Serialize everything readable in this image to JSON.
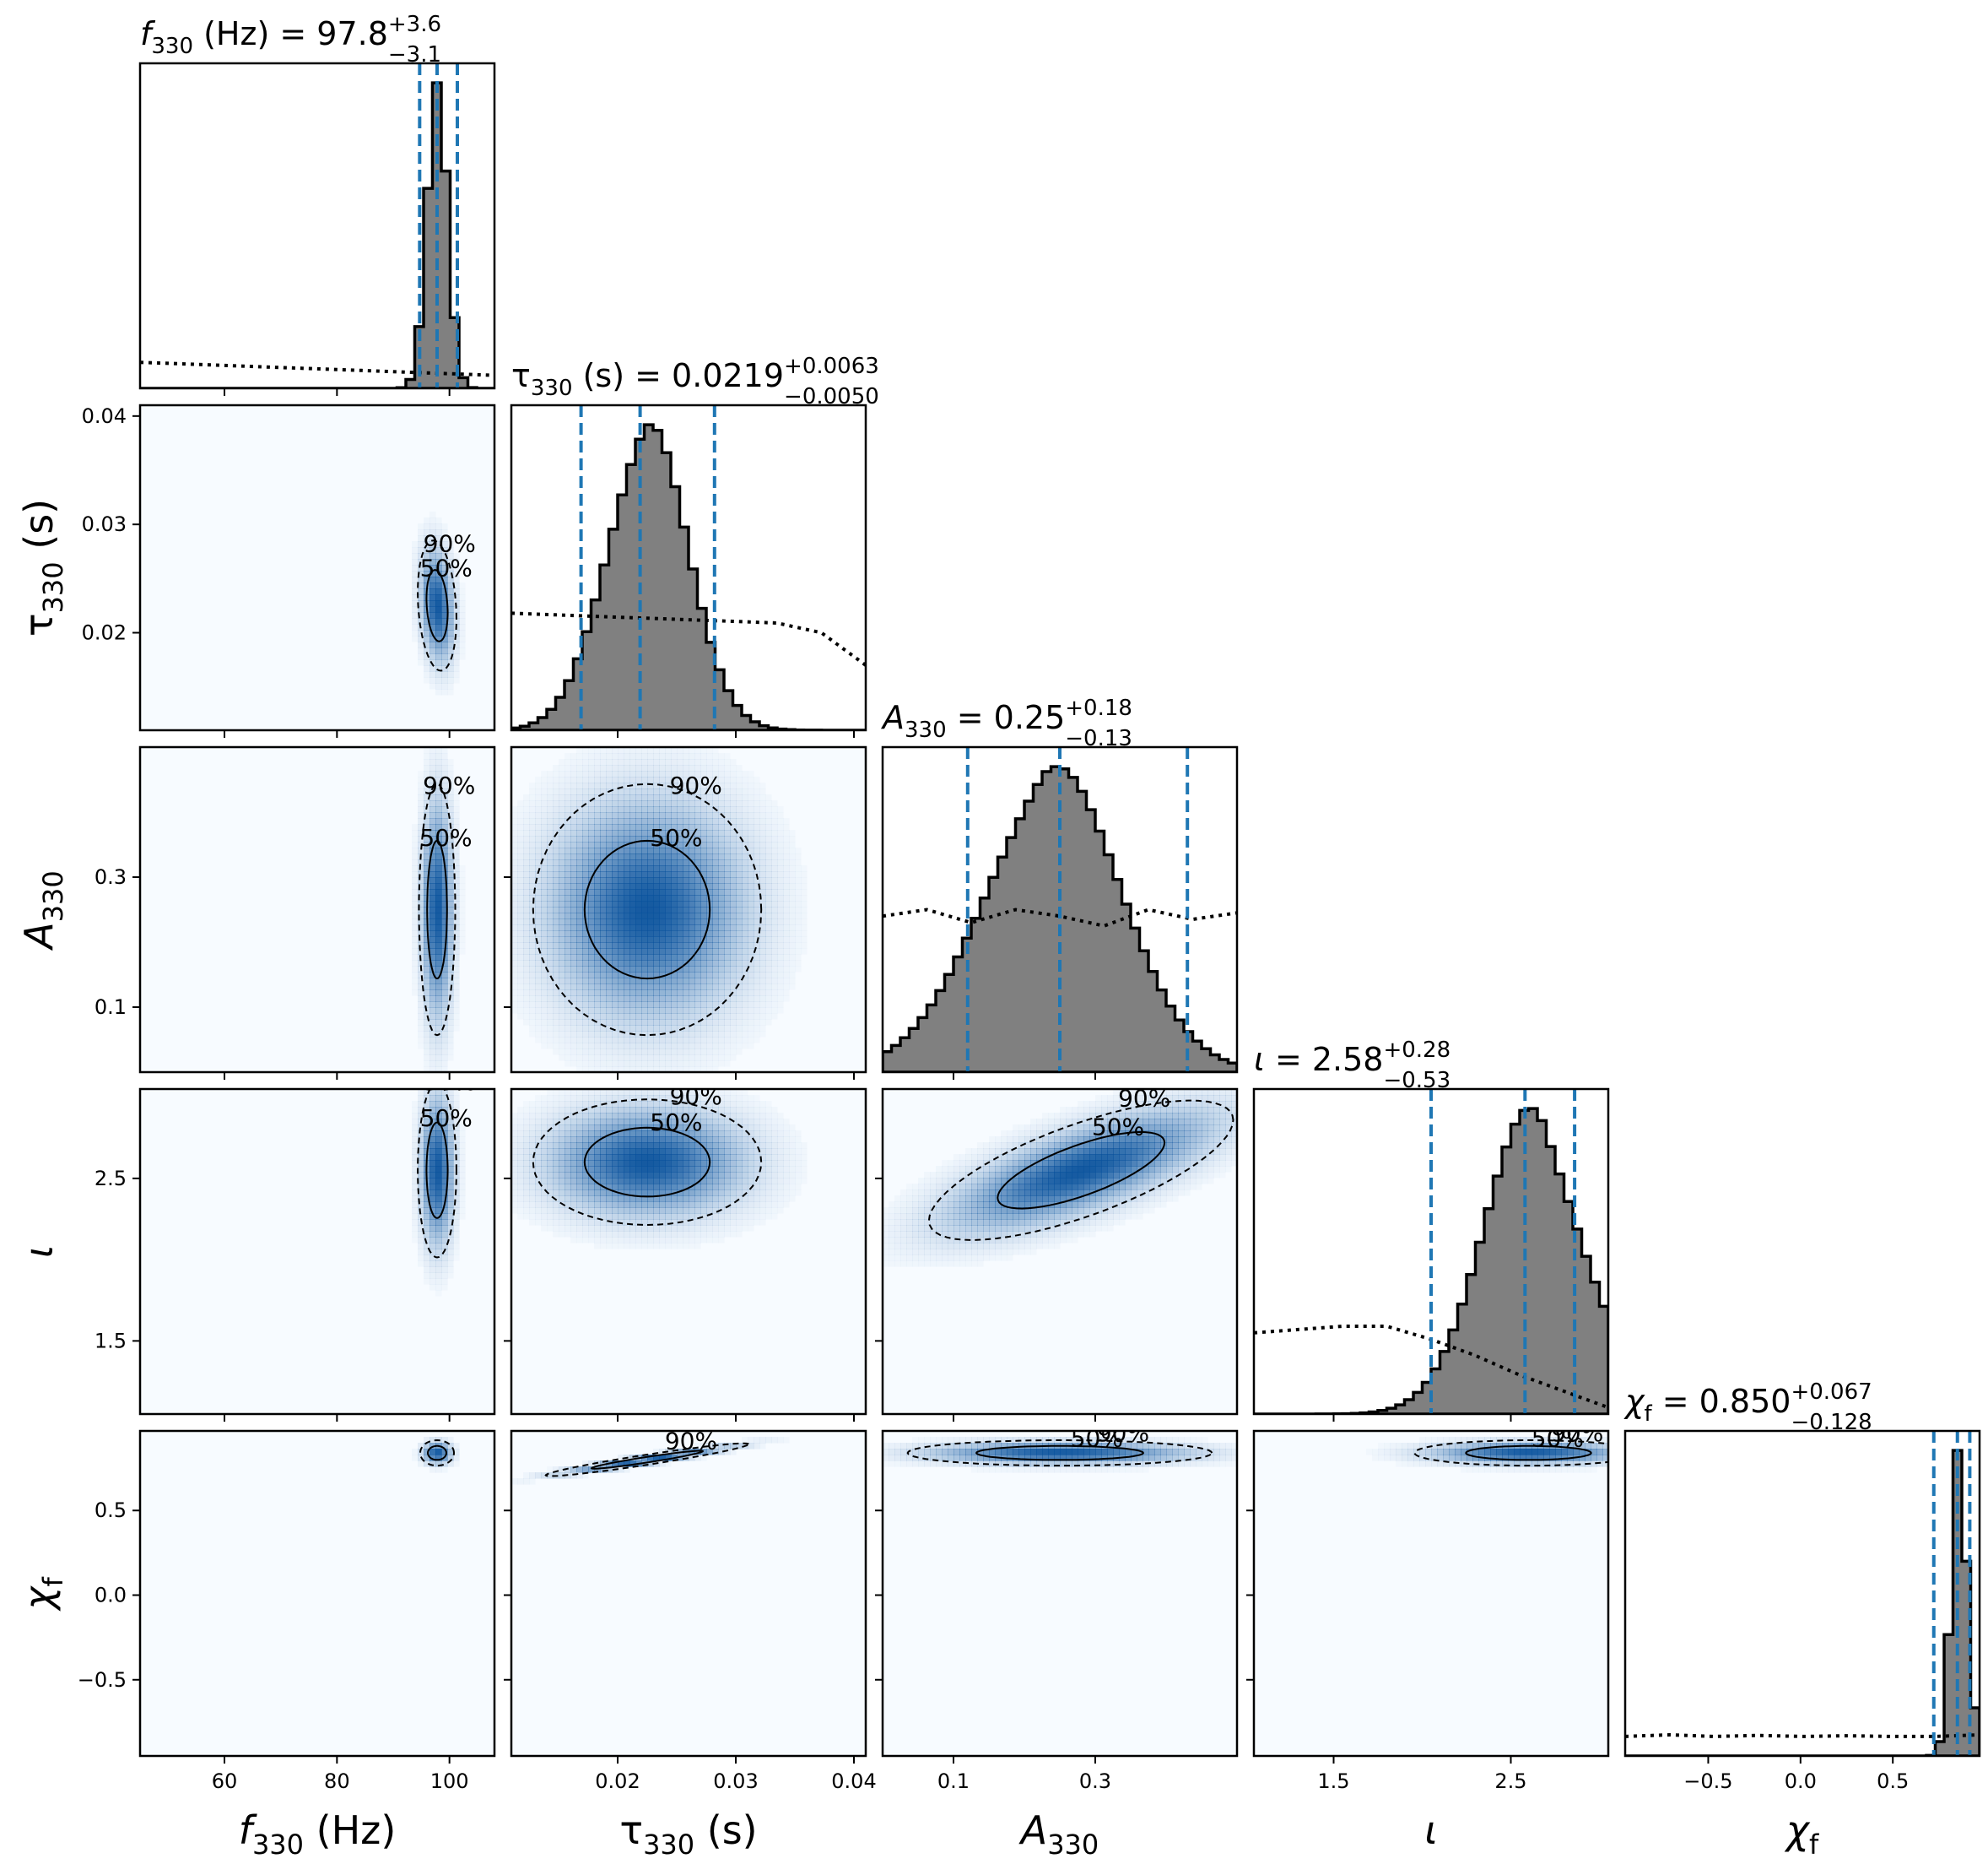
{
  "chart_data": {
    "type": "corner",
    "colors": {
      "hist_fill": "#808080",
      "hist_edge": "#000000",
      "quantile_line": "#1f77b4",
      "density": "#08519c",
      "density_bg": "#f7fbff"
    },
    "parameters": [
      {
        "id": "f330",
        "axis_label": "f330 (Hz)",
        "label_main": "f",
        "label_sub": "330",
        "label_suffix": " (Hz)",
        "italic": true,
        "range": [
          45,
          108
        ],
        "ticks": [
          60,
          80,
          100
        ],
        "tick_labels": [
          "60",
          "80",
          "100"
        ],
        "y_tick_labels": [],
        "title_value": "97.8",
        "title_plus": "+3.6",
        "title_minus": "−3.1",
        "quantiles": [
          94.7,
          97.8,
          101.4
        ],
        "hist": {
          "center": 97.8,
          "sigma": 1.8,
          "skew": 0.05
        },
        "prior": {
          "shape": "decreasing",
          "values": [
            0.08,
            0.075,
            0.07,
            0.065,
            0.06,
            0.055,
            0.05,
            0.045,
            0.04
          ]
        }
      },
      {
        "id": "tau330",
        "axis_label": "τ330 (s)",
        "label_main": "τ",
        "label_sub": "330",
        "label_suffix": " (s)",
        "italic": false,
        "range": [
          0.011,
          0.041
        ],
        "ticks": [
          0.02,
          0.03,
          0.04
        ],
        "tick_labels": [
          "0.02",
          "0.03",
          "0.04"
        ],
        "y_tick_labels": [
          "0.02",
          "0.03",
          "0.04"
        ],
        "title_value": "0.0219",
        "title_plus": "+0.0063",
        "title_minus": "−0.0050",
        "quantiles": [
          0.0169,
          0.0219,
          0.0282
        ],
        "hist": {
          "center": 0.022,
          "sigma": 0.0035,
          "skew": 0.35
        },
        "prior": {
          "shape": "decreasing",
          "values": [
            0.36,
            0.355,
            0.35,
            0.345,
            0.34,
            0.335,
            0.33,
            0.3,
            0.2
          ]
        }
      },
      {
        "id": "A330",
        "axis_label": "A330",
        "label_main": "A",
        "label_sub": "330",
        "label_suffix": "",
        "italic": true,
        "range": [
          0.0,
          0.5
        ],
        "ticks": [
          0.1,
          0.3
        ],
        "tick_labels": [
          "0.1",
          "0.3"
        ],
        "y_tick_labels": [
          "0.1",
          "0.3"
        ],
        "title_value": "0.25",
        "title_plus": "+0.18",
        "title_minus": "−0.13",
        "quantiles": [
          0.12,
          0.25,
          0.43
        ],
        "hist": {
          "center": 0.22,
          "sigma": 0.1,
          "skew": 0.45
        },
        "prior": {
          "shape": "flat",
          "values": [
            0.48,
            0.5,
            0.46,
            0.5,
            0.48,
            0.45,
            0.5,
            0.47,
            0.49
          ]
        }
      },
      {
        "id": "iota",
        "axis_label": "ι",
        "label_main": "ι",
        "label_sub": "",
        "label_suffix": "",
        "italic": true,
        "range": [
          1.05,
          3.05
        ],
        "ticks": [
          1.5,
          2.5
        ],
        "tick_labels": [
          "1.5",
          "2.5"
        ],
        "y_tick_labels": [
          "1.5",
          "2.5"
        ],
        "title_value": "2.58",
        "title_plus": "+0.28",
        "title_minus": "−0.53",
        "quantiles": [
          2.05,
          2.58,
          2.86
        ],
        "hist": {
          "center": 2.7,
          "sigma": 0.3,
          "skew": -0.6
        },
        "prior": {
          "shape": "decreasing",
          "values": [
            0.25,
            0.26,
            0.27,
            0.27,
            0.23,
            0.18,
            0.12,
            0.07,
            0.02
          ]
        }
      },
      {
        "id": "chif",
        "axis_label": "χf",
        "label_main": "χ",
        "label_sub": "f",
        "label_suffix": "",
        "italic": true,
        "range": [
          -0.95,
          0.97
        ],
        "ticks": [
          -0.5,
          0.0,
          0.5
        ],
        "tick_labels": [
          "−0.5",
          "0.0",
          "0.5"
        ],
        "y_tick_labels": [
          "−0.5",
          "0.0",
          "0.5"
        ],
        "title_value": "0.850",
        "title_plus": "+0.067",
        "title_minus": "−0.128",
        "quantiles": [
          0.722,
          0.85,
          0.917
        ],
        "hist": {
          "center": 0.87,
          "sigma": 0.045,
          "skew": -0.5
        },
        "prior": {
          "shape": "flat",
          "values": [
            0.06,
            0.065,
            0.06,
            0.063,
            0.06,
            0.062,
            0.06,
            0.06,
            0.065
          ]
        }
      }
    ],
    "pairs": [
      {
        "x": "f330",
        "y": "tau330",
        "mean": [
          97.8,
          0.0225
        ],
        "sd": [
          1.6,
          0.0028
        ],
        "rho": -0.2,
        "labels": [
          "50%",
          "90%"
        ]
      },
      {
        "x": "f330",
        "y": "A330",
        "mean": [
          97.8,
          0.25
        ],
        "sd": [
          1.5,
          0.09
        ],
        "rho": 0.0,
        "labels": [
          "50%",
          "90%"
        ]
      },
      {
        "x": "tau330",
        "y": "A330",
        "mean": [
          0.0225,
          0.25
        ],
        "sd": [
          0.0045,
          0.09
        ],
        "rho": 0.0,
        "labels": [
          "50%",
          "90%"
        ]
      },
      {
        "x": "f330",
        "y": "iota",
        "mean": [
          97.8,
          2.55
        ],
        "sd": [
          1.6,
          0.25
        ],
        "rho": 0.0,
        "labels": [
          "50%",
          "90%"
        ]
      },
      {
        "x": "tau330",
        "y": "iota",
        "mean": [
          0.0225,
          2.6
        ],
        "sd": [
          0.0045,
          0.18
        ],
        "rho": 0.0,
        "labels": [
          "50%",
          "90%"
        ]
      },
      {
        "x": "A330",
        "y": "iota",
        "mean": [
          0.28,
          2.55
        ],
        "sd": [
          0.1,
          0.2
        ],
        "rho": 0.72,
        "labels": [
          "50%",
          "90%"
        ]
      },
      {
        "x": "f330",
        "y": "chif",
        "mean": [
          97.8,
          0.84
        ],
        "sd": [
          1.4,
          0.035
        ],
        "rho": 0.0,
        "labels": []
      },
      {
        "x": "tau330",
        "y": "chif",
        "mean": [
          0.0225,
          0.8
        ],
        "sd": [
          0.004,
          0.045
        ],
        "rho": 0.95,
        "labels": [
          "90%"
        ]
      },
      {
        "x": "A330",
        "y": "chif",
        "mean": [
          0.25,
          0.84
        ],
        "sd": [
          0.1,
          0.035
        ],
        "rho": 0.0,
        "labels": [
          "50%",
          "90%"
        ]
      },
      {
        "x": "iota",
        "y": "chif",
        "mean": [
          2.6,
          0.84
        ],
        "sd": [
          0.3,
          0.035
        ],
        "rho": 0.0,
        "labels": [
          "90%",
          "50%"
        ]
      }
    ]
  }
}
